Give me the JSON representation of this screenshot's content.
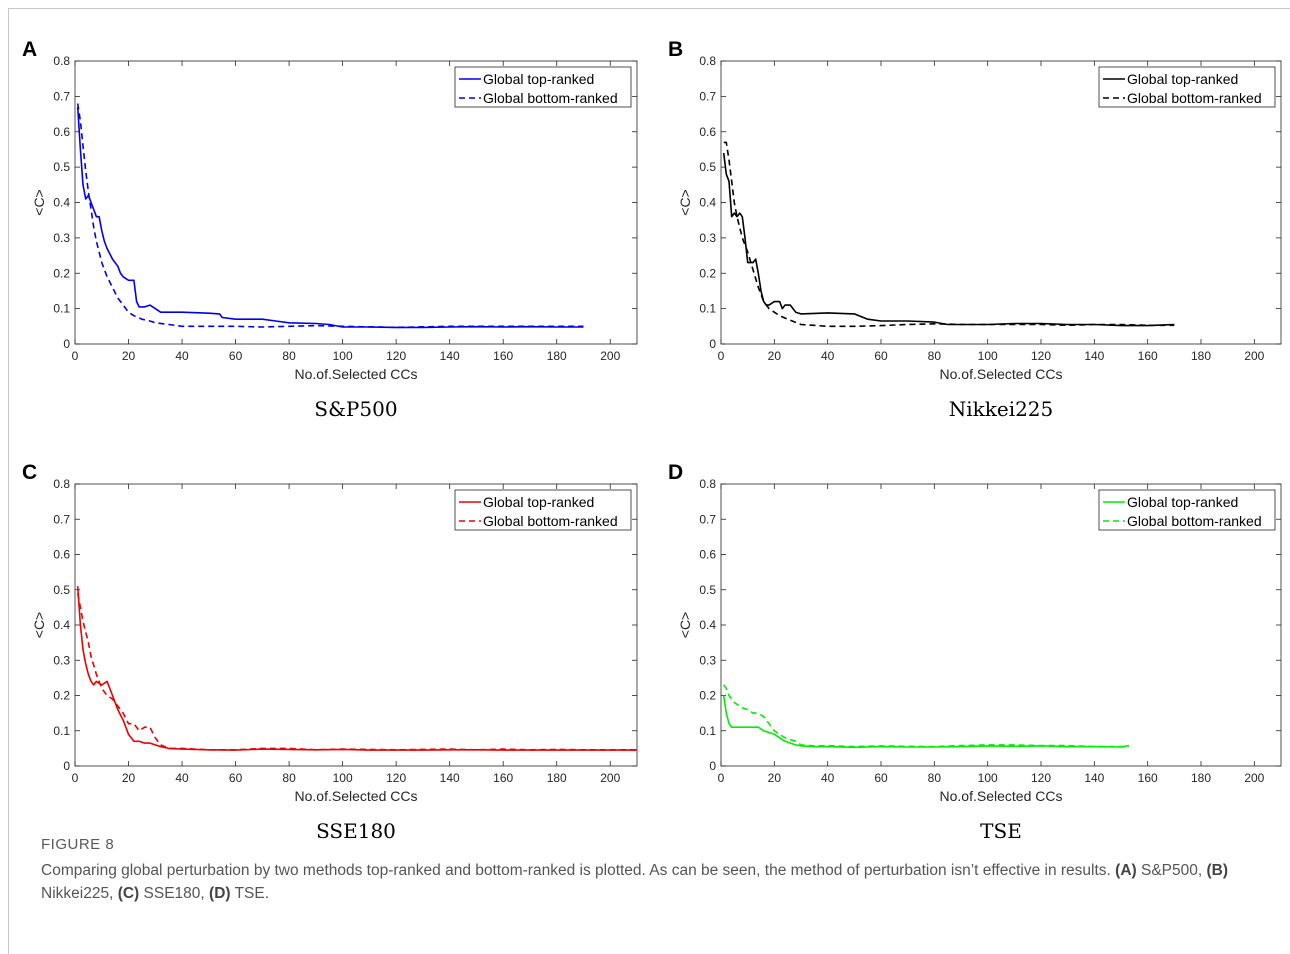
{
  "figure": {
    "label": "FIGURE 8",
    "caption_main": "Comparing global perturbation by two methods top-ranked and bottom-ranked is plotted. As can be seen, the method of perturbation isn’t effective in results.",
    "caption_parts": [
      {
        "tag": "(A)",
        "text": "S&P500,"
      },
      {
        "tag": "(B)",
        "text": "Nikkei225,"
      },
      {
        "tag": "(C)",
        "text": "SSE180,"
      },
      {
        "tag": "(D)",
        "text": "TSE."
      }
    ]
  },
  "chart_data": [
    {
      "type": "line",
      "panel": "A",
      "subtitle": "S&P500",
      "xlabel": "No.of.Selected CCs",
      "ylabel": "<C>",
      "xlim": [
        0,
        210
      ],
      "ylim": [
        0,
        0.8
      ],
      "xticks": [
        0,
        20,
        40,
        60,
        80,
        100,
        120,
        140,
        160,
        180,
        200
      ],
      "yticks": [
        0,
        0.1,
        0.2,
        0.3,
        0.4,
        0.5,
        0.6,
        0.7,
        0.8
      ],
      "legend_position": "top-right",
      "color": "#0000ee",
      "series": [
        {
          "name": "Global top-ranked",
          "style": "solid",
          "x": [
            1,
            2,
            3,
            4,
            5,
            6,
            8,
            9,
            10,
            11,
            12,
            14,
            16,
            17,
            18,
            20,
            22,
            23,
            24,
            26,
            28,
            30,
            32,
            34,
            40,
            50,
            54,
            55,
            60,
            70,
            75,
            80,
            90,
            95,
            100,
            110,
            120,
            130,
            140,
            150,
            160,
            170,
            180,
            190
          ],
          "y": [
            0.67,
            0.55,
            0.45,
            0.41,
            0.42,
            0.4,
            0.36,
            0.36,
            0.32,
            0.29,
            0.27,
            0.24,
            0.22,
            0.2,
            0.19,
            0.18,
            0.18,
            0.12,
            0.105,
            0.105,
            0.11,
            0.1,
            0.09,
            0.09,
            0.09,
            0.087,
            0.085,
            0.075,
            0.07,
            0.07,
            0.065,
            0.06,
            0.058,
            0.055,
            0.048,
            0.048,
            0.047,
            0.047,
            0.048,
            0.049,
            0.048,
            0.049,
            0.048,
            0.048
          ]
        },
        {
          "name": "Global bottom-ranked",
          "style": "dashed",
          "x": [
            1,
            2,
            3,
            4,
            5,
            6,
            7,
            8,
            10,
            12,
            14,
            16,
            18,
            20,
            22,
            25,
            28,
            30,
            35,
            40,
            50,
            60,
            70,
            80,
            90,
            100,
            120,
            140,
            160,
            180,
            190
          ],
          "y": [
            0.68,
            0.63,
            0.56,
            0.49,
            0.43,
            0.38,
            0.33,
            0.29,
            0.23,
            0.19,
            0.16,
            0.13,
            0.11,
            0.09,
            0.08,
            0.07,
            0.065,
            0.06,
            0.055,
            0.05,
            0.05,
            0.05,
            0.048,
            0.05,
            0.052,
            0.05,
            0.047,
            0.05,
            0.05,
            0.05,
            0.05
          ]
        }
      ]
    },
    {
      "type": "line",
      "panel": "B",
      "subtitle": "Nikkei225",
      "xlabel": "No.of.Selected CCs",
      "ylabel": "<C>",
      "xlim": [
        0,
        210
      ],
      "ylim": [
        0,
        0.8
      ],
      "xticks": [
        0,
        20,
        40,
        60,
        80,
        100,
        120,
        140,
        160,
        180,
        200
      ],
      "yticks": [
        0,
        0.1,
        0.2,
        0.3,
        0.4,
        0.5,
        0.6,
        0.7,
        0.8
      ],
      "legend_position": "top-right",
      "color": "#000000",
      "series": [
        {
          "name": "Global top-ranked",
          "style": "solid",
          "x": [
            1,
            2,
            3,
            4,
            5,
            6,
            7,
            8,
            9,
            10,
            11,
            12,
            13,
            14,
            15,
            16,
            17,
            18,
            20,
            22,
            23,
            24,
            26,
            28,
            30,
            40,
            50,
            55,
            60,
            70,
            80,
            85,
            90,
            100,
            110,
            120,
            130,
            140,
            150,
            160,
            170
          ],
          "y": [
            0.54,
            0.48,
            0.46,
            0.36,
            0.37,
            0.36,
            0.37,
            0.36,
            0.3,
            0.23,
            0.23,
            0.23,
            0.24,
            0.2,
            0.15,
            0.12,
            0.11,
            0.11,
            0.12,
            0.12,
            0.1,
            0.11,
            0.11,
            0.09,
            0.085,
            0.088,
            0.085,
            0.07,
            0.065,
            0.065,
            0.062,
            0.055,
            0.055,
            0.055,
            0.058,
            0.058,
            0.055,
            0.055,
            0.052,
            0.052,
            0.055
          ]
        },
        {
          "name": "Global bottom-ranked",
          "style": "dashed",
          "x": [
            1,
            2,
            3,
            4,
            5,
            6,
            7,
            8,
            10,
            12,
            14,
            16,
            18,
            20,
            22,
            25,
            30,
            40,
            50,
            60,
            70,
            80,
            90,
            100,
            110,
            120,
            130,
            140,
            150,
            160,
            170
          ],
          "y": [
            0.57,
            0.57,
            0.52,
            0.46,
            0.4,
            0.36,
            0.33,
            0.3,
            0.26,
            0.21,
            0.16,
            0.12,
            0.1,
            0.09,
            0.08,
            0.07,
            0.055,
            0.05,
            0.05,
            0.052,
            0.055,
            0.057,
            0.055,
            0.055,
            0.055,
            0.055,
            0.053,
            0.055,
            0.055,
            0.053,
            0.053
          ]
        }
      ]
    },
    {
      "type": "line",
      "panel": "C",
      "subtitle": "SSE180",
      "xlabel": "No.of.Selected CCs",
      "ylabel": "<C>",
      "xlim": [
        0,
        210
      ],
      "ylim": [
        0,
        0.8
      ],
      "xticks": [
        0,
        20,
        40,
        60,
        80,
        100,
        120,
        140,
        160,
        180,
        200
      ],
      "yticks": [
        0,
        0.1,
        0.2,
        0.3,
        0.4,
        0.5,
        0.6,
        0.7,
        0.8
      ],
      "legend_position": "top-right",
      "color": "#ee0000",
      "series": [
        {
          "name": "Global top-ranked",
          "style": "solid",
          "x": [
            1,
            2,
            3,
            4,
            5,
            6,
            7,
            8,
            10,
            12,
            14,
            15,
            16,
            18,
            20,
            22,
            24,
            26,
            28,
            30,
            32,
            35,
            40,
            50,
            60,
            70,
            80,
            90,
            100,
            110,
            120,
            130,
            140,
            150,
            160,
            170,
            180,
            190,
            200,
            210
          ],
          "y": [
            0.51,
            0.4,
            0.33,
            0.29,
            0.26,
            0.24,
            0.23,
            0.24,
            0.23,
            0.24,
            0.2,
            0.18,
            0.16,
            0.13,
            0.09,
            0.07,
            0.07,
            0.065,
            0.065,
            0.06,
            0.055,
            0.05,
            0.048,
            0.046,
            0.045,
            0.048,
            0.047,
            0.046,
            0.047,
            0.045,
            0.045,
            0.045,
            0.046,
            0.046,
            0.045,
            0.045,
            0.045,
            0.045,
            0.045,
            0.045
          ]
        },
        {
          "name": "Global bottom-ranked",
          "style": "dashed",
          "x": [
            1,
            2,
            3,
            4,
            5,
            6,
            8,
            10,
            12,
            14,
            16,
            18,
            20,
            22,
            24,
            26,
            28,
            30,
            32,
            35,
            40,
            50,
            60,
            70,
            80,
            90,
            100,
            110,
            120,
            130,
            140,
            150,
            160,
            170,
            180,
            190,
            200,
            210
          ],
          "y": [
            0.49,
            0.45,
            0.41,
            0.38,
            0.35,
            0.31,
            0.26,
            0.22,
            0.2,
            0.19,
            0.17,
            0.15,
            0.12,
            0.12,
            0.1,
            0.11,
            0.11,
            0.08,
            0.06,
            0.05,
            0.05,
            0.046,
            0.046,
            0.05,
            0.05,
            0.046,
            0.048,
            0.047,
            0.046,
            0.047,
            0.048,
            0.046,
            0.048,
            0.046,
            0.047,
            0.046,
            0.046,
            0.046
          ]
        }
      ]
    },
    {
      "type": "line",
      "panel": "D",
      "subtitle": "TSE",
      "xlabel": "No.of.Selected CCs",
      "ylabel": "<C>",
      "xlim": [
        0,
        210
      ],
      "ylim": [
        0,
        0.8
      ],
      "xticks": [
        0,
        20,
        40,
        60,
        80,
        100,
        120,
        140,
        160,
        180,
        200
      ],
      "yticks": [
        0,
        0.1,
        0.2,
        0.3,
        0.4,
        0.5,
        0.6,
        0.7,
        0.8
      ],
      "legend_position": "top-right",
      "color": "#00ee00",
      "series": [
        {
          "name": "Global top-ranked",
          "style": "solid",
          "x": [
            1,
            2,
            3,
            4,
            5,
            6,
            8,
            10,
            12,
            14,
            16,
            18,
            20,
            22,
            24,
            26,
            28,
            30,
            35,
            40,
            50,
            60,
            70,
            80,
            90,
            100,
            110,
            120,
            130,
            140,
            150,
            153
          ],
          "y": [
            0.2,
            0.15,
            0.12,
            0.11,
            0.11,
            0.11,
            0.11,
            0.11,
            0.11,
            0.11,
            0.1,
            0.095,
            0.09,
            0.08,
            0.07,
            0.065,
            0.06,
            0.057,
            0.055,
            0.055,
            0.053,
            0.055,
            0.054,
            0.054,
            0.055,
            0.057,
            0.056,
            0.057,
            0.055,
            0.055,
            0.054,
            0.058
          ]
        },
        {
          "name": "Global bottom-ranked",
          "style": "dashed",
          "x": [
            1,
            2,
            3,
            4,
            5,
            6,
            8,
            10,
            12,
            14,
            16,
            18,
            20,
            22,
            24,
            26,
            28,
            30,
            35,
            40,
            50,
            60,
            70,
            80,
            90,
            100,
            110,
            120,
            130,
            140,
            150,
            153
          ],
          "y": [
            0.23,
            0.22,
            0.2,
            0.19,
            0.18,
            0.175,
            0.165,
            0.16,
            0.15,
            0.15,
            0.14,
            0.12,
            0.1,
            0.09,
            0.08,
            0.075,
            0.07,
            0.06,
            0.057,
            0.058,
            0.055,
            0.057,
            0.056,
            0.055,
            0.058,
            0.06,
            0.06,
            0.058,
            0.058,
            0.055,
            0.055,
            0.055
          ]
        }
      ]
    }
  ]
}
